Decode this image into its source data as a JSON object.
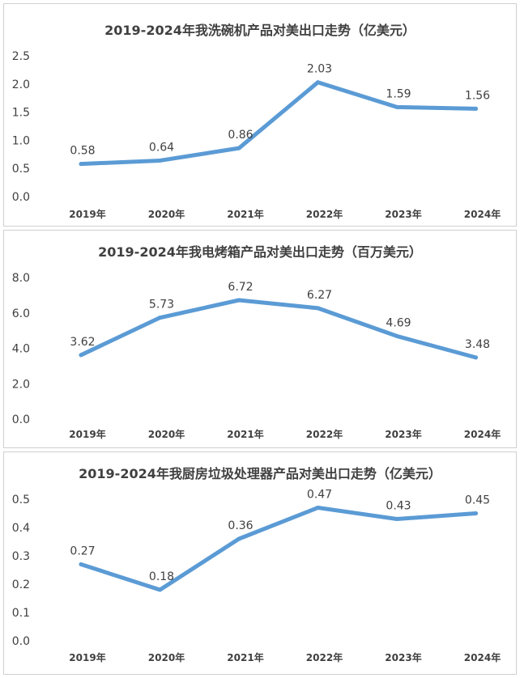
{
  "chart_data": [
    {
      "type": "line",
      "title": "2019-2024年我洗碗机产品对美出口走势（亿美元）",
      "categories": [
        "2019年",
        "2020年",
        "2021年",
        "2022年",
        "2023年",
        "2024年"
      ],
      "values": [
        0.58,
        0.64,
        0.86,
        2.03,
        1.59,
        1.56
      ],
      "labels": [
        "0.58",
        "0.64",
        "0.86",
        "2.03",
        "1.59",
        "1.56"
      ],
      "ylim": [
        0,
        2.5
      ],
      "yticks": [
        "0.0",
        "0.5",
        "1.0",
        "1.5",
        "2.0",
        "2.5"
      ],
      "grid": false,
      "color": "#5b9bd5"
    },
    {
      "type": "line",
      "title": "2019-2024年我电烤箱产品对美出口走势（百万美元）",
      "categories": [
        "2019年",
        "2020年",
        "2021年",
        "2022年",
        "2023年",
        "2024年"
      ],
      "values": [
        3.62,
        5.73,
        6.72,
        6.27,
        4.69,
        3.48
      ],
      "labels": [
        "3.62",
        "5.73",
        "6.72",
        "6.27",
        "4.69",
        "3.48"
      ],
      "ylim": [
        0,
        8
      ],
      "yticks": [
        "0.0",
        "2.0",
        "4.0",
        "6.0",
        "8.0"
      ],
      "grid": false,
      "color": "#5b9bd5"
    },
    {
      "type": "line",
      "title": "2019-2024年我厨房垃圾处理器产品对美出口走势（亿美元）",
      "categories": [
        "2019年",
        "2020年",
        "2021年",
        "2022年",
        "2023年",
        "2024年"
      ],
      "values": [
        0.27,
        0.18,
        0.36,
        0.47,
        0.43,
        0.45
      ],
      "labels": [
        "0.27",
        "0.18",
        "0.36",
        "0.47",
        "0.43",
        "0.45"
      ],
      "ylim": [
        0,
        0.5
      ],
      "yticks": [
        "0.0",
        "0.1",
        "0.2",
        "0.3",
        "0.4",
        "0.5"
      ],
      "grid": false,
      "color": "#5b9bd5"
    }
  ]
}
